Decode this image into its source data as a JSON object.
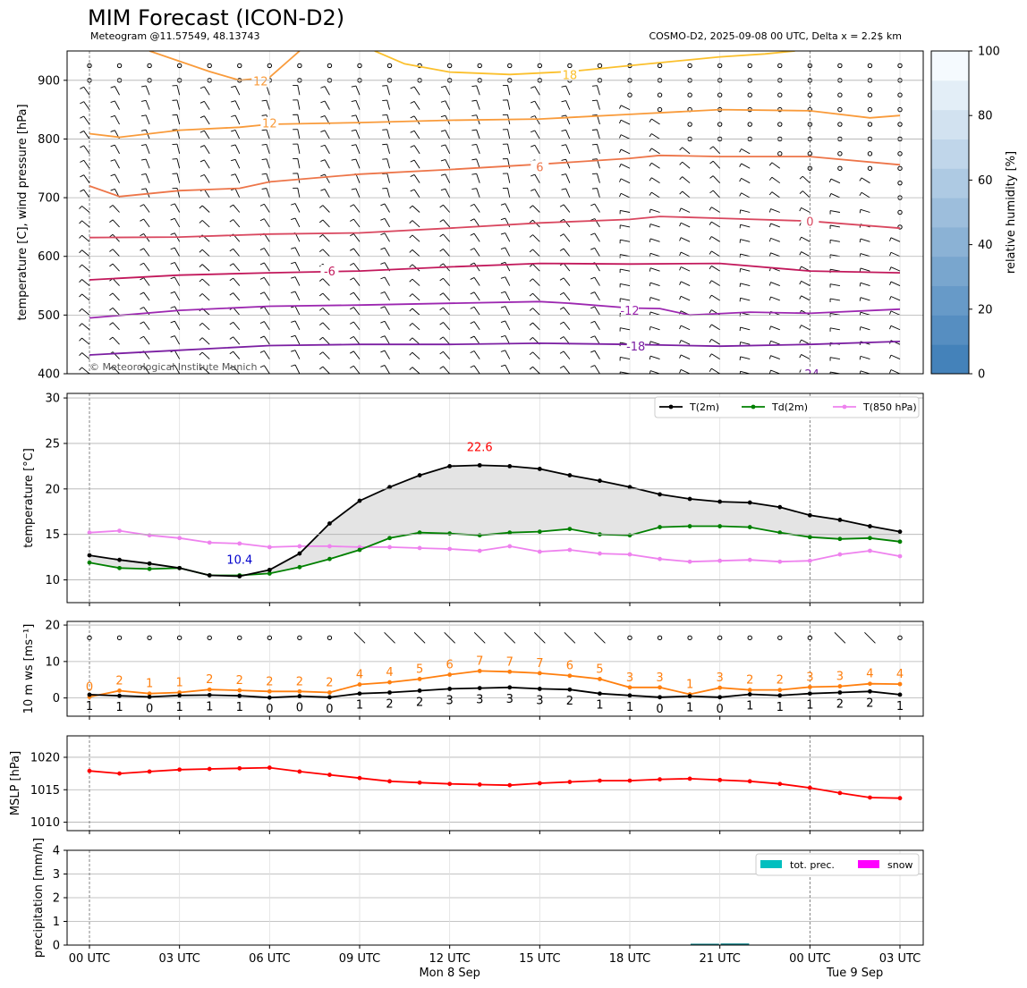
{
  "header": {
    "title": "MIM Forecast (ICON-D2)",
    "subtitle_left": "Meteogram @11.57549, 48.13743",
    "subtitle_right": "COSMO-D2, 2025-09-08 00 UTC, Delta x = 2.2$ km"
  },
  "colors": {
    "t2m": "#000000",
    "td2m": "#008000",
    "t850": "#ee82ee",
    "gust": "#ff7f0e",
    "mslp": "#ff0000",
    "precip": "#00bfbf",
    "snow": "#ff00ff",
    "max_label": "#ff0000",
    "min_label": "#0000cd"
  },
  "chart_data": [
    {
      "panel": "upper_air",
      "type": "contour",
      "ylabel": "temperature [C], wind pressure [hPa]",
      "ylim": [
        950,
        400
      ],
      "yticks": [
        "400",
        "500",
        "600",
        "700",
        "800",
        "900"
      ],
      "copyright": "© Meteorological Institute Munich",
      "colorbar": {
        "label": "relative humidity [%]",
        "range": [
          0,
          100
        ],
        "ticks": [
          "0",
          "20",
          "40",
          "60",
          "80",
          "100"
        ],
        "levels": 11
      },
      "isotherm_labels": [
        {
          "text": "-24",
          "hour": 24,
          "p": 400
        },
        {
          "text": "-18",
          "hour": 18.2,
          "p": 447
        },
        {
          "text": "-12",
          "hour": 18.0,
          "p": 508
        },
        {
          "text": "-6",
          "hour": 8.0,
          "p": 575
        },
        {
          "text": "0",
          "hour": 24.0,
          "p": 660
        },
        {
          "text": "6",
          "hour": 15.0,
          "p": 753
        },
        {
          "text": "12",
          "hour": 6.0,
          "p": 827
        },
        {
          "text": "12",
          "hour": 5.7,
          "p": 899
        },
        {
          "text": "18",
          "hour": 16.0,
          "p": 910
        }
      ],
      "isotherms": [
        {
          "temp": -18,
          "color": "#7b1fa2",
          "hours": [
            0,
            3,
            6,
            9,
            12,
            15,
            18,
            21,
            24,
            27
          ],
          "p": [
            432,
            440,
            448,
            450,
            450,
            452,
            450,
            447,
            450,
            455
          ]
        },
        {
          "temp": -12,
          "color": "#9c27b0",
          "hours": [
            0,
            3,
            6,
            9,
            12,
            15,
            16,
            18,
            19,
            20,
            22,
            24,
            27
          ],
          "p": [
            495,
            508,
            515,
            517,
            520,
            523,
            520,
            512,
            511,
            500,
            505,
            503,
            510
          ]
        },
        {
          "temp": -6,
          "color": "#c2185b",
          "hours": [
            0,
            3,
            6,
            9,
            12,
            15,
            18,
            21,
            24,
            27
          ],
          "p": [
            560,
            568,
            572,
            575,
            582,
            588,
            587,
            588,
            575,
            572
          ]
        },
        {
          "temp": 0,
          "color": "#d9475f",
          "hours": [
            0,
            3,
            6,
            9,
            12,
            15,
            18,
            19,
            21,
            24,
            27
          ],
          "p": [
            632,
            633,
            638,
            640,
            648,
            657,
            663,
            668,
            665,
            660,
            648
          ]
        },
        {
          "temp": 6,
          "color": "#ed7549",
          "hours": [
            0,
            1,
            3,
            5,
            6,
            9,
            12,
            15,
            18,
            19,
            21,
            24,
            27
          ],
          "p": [
            720,
            702,
            712,
            716,
            727,
            740,
            748,
            757,
            767,
            772,
            770,
            770,
            756
          ]
        },
        {
          "temp": 12,
          "color": "#f99b3b",
          "hours": [
            0,
            1,
            3,
            5,
            6,
            9,
            12,
            15,
            18,
            21,
            24,
            26,
            27
          ],
          "p": [
            809,
            803,
            815,
            820,
            825,
            828,
            832,
            834,
            842,
            850,
            848,
            836,
            840
          ]
        },
        {
          "temp": 12,
          "color": "#f99b3b",
          "hours": [
            2,
            4,
            5,
            6,
            7
          ],
          "p": [
            950,
            915,
            900,
            905,
            950
          ]
        },
        {
          "temp": 18,
          "color": "#fbc02d",
          "hours": [
            9.5,
            10.5,
            12,
            14,
            16,
            18,
            21,
            22.5,
            23.5
          ],
          "p": [
            950,
            928,
            914,
            910,
            915,
            925,
            940,
            945,
            950
          ]
        }
      ],
      "calm_wind_levels": {
        "first_hour": [
          {
            "p": 900,
            "from": 0
          },
          {
            "p": 925,
            "from": 0
          },
          {
            "p": 875,
            "from": 18
          },
          {
            "p": 850,
            "from": 19
          },
          {
            "p": 825,
            "from": 20
          },
          {
            "p": 800,
            "from": 20
          },
          {
            "p": 775,
            "from": 23
          },
          {
            "p": 750,
            "from": 24
          },
          {
            "p": 725,
            "from": 27
          },
          {
            "p": 700,
            "from": 27
          },
          {
            "p": 675,
            "from": 27
          },
          {
            "p": 650,
            "from": 27
          }
        ]
      }
    },
    {
      "panel": "temperature",
      "type": "line",
      "ylabel": "temperature [$^\\circ$C]",
      "ylim": [
        7.5,
        30.5
      ],
      "yticks": [
        "10",
        "15",
        "20",
        "25",
        "30"
      ],
      "legend_position": "top-right",
      "hours": [
        0,
        1,
        2,
        3,
        4,
        5,
        6,
        7,
        8,
        9,
        10,
        11,
        12,
        13,
        14,
        15,
        16,
        17,
        18,
        19,
        20,
        21,
        22,
        23,
        24,
        25,
        26,
        27
      ],
      "series": [
        {
          "name": "T(2m)",
          "values": [
            12.7,
            12.2,
            11.8,
            11.3,
            10.5,
            10.4,
            11.1,
            12.9,
            16.2,
            18.7,
            20.2,
            21.5,
            22.5,
            22.6,
            22.5,
            22.2,
            21.5,
            20.9,
            20.2,
            19.4,
            18.9,
            18.6,
            18.5,
            18.0,
            17.1,
            16.6,
            15.9,
            15.3
          ]
        },
        {
          "name": "Td(2m)",
          "values": [
            11.9,
            11.3,
            11.2,
            11.3,
            10.5,
            10.5,
            10.7,
            11.4,
            12.3,
            13.3,
            14.6,
            15.2,
            15.1,
            14.9,
            15.2,
            15.3,
            15.6,
            15.0,
            14.9,
            15.8,
            15.9,
            15.9,
            15.8,
            15.2,
            14.7,
            14.5,
            14.6,
            14.2
          ]
        },
        {
          "name": "T(850 hPa)",
          "values": [
            15.2,
            15.4,
            14.9,
            14.6,
            14.1,
            14.0,
            13.6,
            13.7,
            13.7,
            13.6,
            13.6,
            13.5,
            13.4,
            13.2,
            13.7,
            13.1,
            13.3,
            12.9,
            12.8,
            12.3,
            12.0,
            12.1,
            12.2,
            12.0,
            12.1,
            12.8,
            13.2,
            12.6
          ]
        }
      ],
      "max_label": "22.6",
      "max_hour": 13,
      "min_label": "10.4",
      "min_hour": 5
    },
    {
      "panel": "wind",
      "type": "line",
      "ylabel": "10 m ws [ms$^{-1}$]",
      "ylim": [
        -5,
        21
      ],
      "yticks": [
        "0",
        "10",
        "20"
      ],
      "hours": [
        0,
        1,
        2,
        3,
        4,
        5,
        6,
        7,
        8,
        9,
        10,
        11,
        12,
        13,
        14,
        15,
        16,
        17,
        18,
        19,
        20,
        21,
        22,
        23,
        24,
        25,
        26,
        27
      ],
      "series": [
        {
          "name": "gust",
          "values": [
            0.3,
            2.0,
            1.2,
            1.5,
            2.3,
            2.1,
            1.8,
            1.8,
            1.5,
            3.7,
            4.3,
            5.2,
            6.4,
            7.4,
            7.2,
            6.8,
            6.1,
            5.2,
            2.9,
            2.9,
            1.0,
            2.8,
            2.2,
            2.2,
            3.0,
            3.2,
            3.9,
            3.8
          ]
        },
        {
          "name": "wind",
          "values": [
            0.9,
            0.6,
            0.3,
            0.7,
            0.8,
            0.6,
            0.1,
            0.5,
            0.2,
            1.2,
            1.5,
            2.0,
            2.5,
            2.7,
            2.9,
            2.5,
            2.3,
            1.2,
            0.7,
            0.2,
            0.5,
            0.2,
            1.0,
            0.7,
            1.2,
            1.5,
            1.8,
            0.9
          ]
        }
      ],
      "gust_labels": [
        "0",
        "2",
        "1",
        "1",
        "2",
        "2",
        "2",
        "2",
        "2",
        "4",
        "4",
        "5",
        "6",
        "7",
        "7",
        "7",
        "6",
        "5",
        "3",
        "3",
        "1",
        "3",
        "2",
        "2",
        "3",
        "3",
        "4",
        "4"
      ],
      "wind_labels": [
        "1",
        "1",
        "0",
        "1",
        "1",
        "1",
        "0",
        "0",
        "0",
        "1",
        "2",
        "2",
        "3",
        "3",
        "3",
        "3",
        "2",
        "1",
        "1",
        "0",
        "1",
        "0",
        "1",
        "1",
        "1",
        "2",
        "2",
        "1"
      ]
    },
    {
      "panel": "mslp",
      "type": "line",
      "ylabel": "MSLP [hPa]",
      "ylim": [
        1008.7,
        1023.3
      ],
      "yticks": [
        "1010",
        "1015",
        "1020"
      ],
      "hours": [
        0,
        1,
        2,
        3,
        4,
        5,
        6,
        7,
        8,
        9,
        10,
        11,
        12,
        13,
        14,
        15,
        16,
        17,
        18,
        19,
        20,
        21,
        22,
        23,
        24,
        25,
        26,
        27
      ],
      "series": [
        {
          "name": "MSLP",
          "values": [
            1017.9,
            1017.5,
            1017.8,
            1018.1,
            1018.2,
            1018.3,
            1018.4,
            1017.8,
            1017.3,
            1016.8,
            1016.3,
            1016.1,
            1015.9,
            1015.8,
            1015.7,
            1016.0,
            1016.2,
            1016.4,
            1016.4,
            1016.6,
            1016.7,
            1016.5,
            1016.3,
            1015.9,
            1015.3,
            1014.5,
            1013.8,
            1013.7
          ]
        }
      ]
    },
    {
      "panel": "precipitation",
      "type": "bar",
      "ylabel": "precipitation [mm/h]",
      "ylim": [
        0,
        4
      ],
      "yticks": [
        "0",
        "1",
        "2",
        "3",
        "4"
      ],
      "legend_position": "top-right",
      "series": [
        {
          "name": "tot. prec.",
          "hours": [
            20.5,
            21.5
          ],
          "values": [
            0.02,
            0.03
          ]
        },
        {
          "name": "snow",
          "hours": [],
          "values": []
        }
      ],
      "xticks": [
        {
          "hour": 0,
          "label": "00 UTC"
        },
        {
          "hour": 3,
          "label": "03 UTC"
        },
        {
          "hour": 6,
          "label": "06 UTC"
        },
        {
          "hour": 9,
          "label": "09 UTC"
        },
        {
          "hour": 12,
          "label": "12 UTC"
        },
        {
          "hour": 15,
          "label": "15 UTC"
        },
        {
          "hour": 18,
          "label": "18 UTC"
        },
        {
          "hour": 21,
          "label": "21 UTC"
        },
        {
          "hour": 24,
          "label": "00 UTC"
        },
        {
          "hour": 27,
          "label": "03 UTC"
        }
      ],
      "date_labels": [
        {
          "hour": 12,
          "label": "Mon 8 Sep"
        },
        {
          "hour": 25.5,
          "label": "Tue 9 Sep"
        }
      ]
    }
  ]
}
